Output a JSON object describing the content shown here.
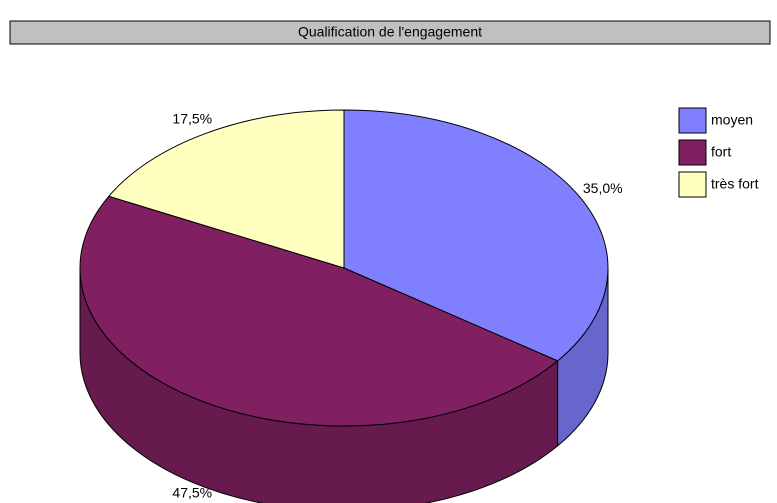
{
  "chart_data": {
    "type": "pie3d",
    "title": "Qualification de l'engagement",
    "categories": [
      "moyen",
      "fort",
      "très fort"
    ],
    "values": [
      35.0,
      47.5,
      17.5
    ],
    "value_labels": [
      "35,0%",
      "47,5%",
      "17,5%"
    ],
    "colors": [
      "#8080ff",
      "#802060",
      "#ffffc0"
    ],
    "legend": "right"
  }
}
